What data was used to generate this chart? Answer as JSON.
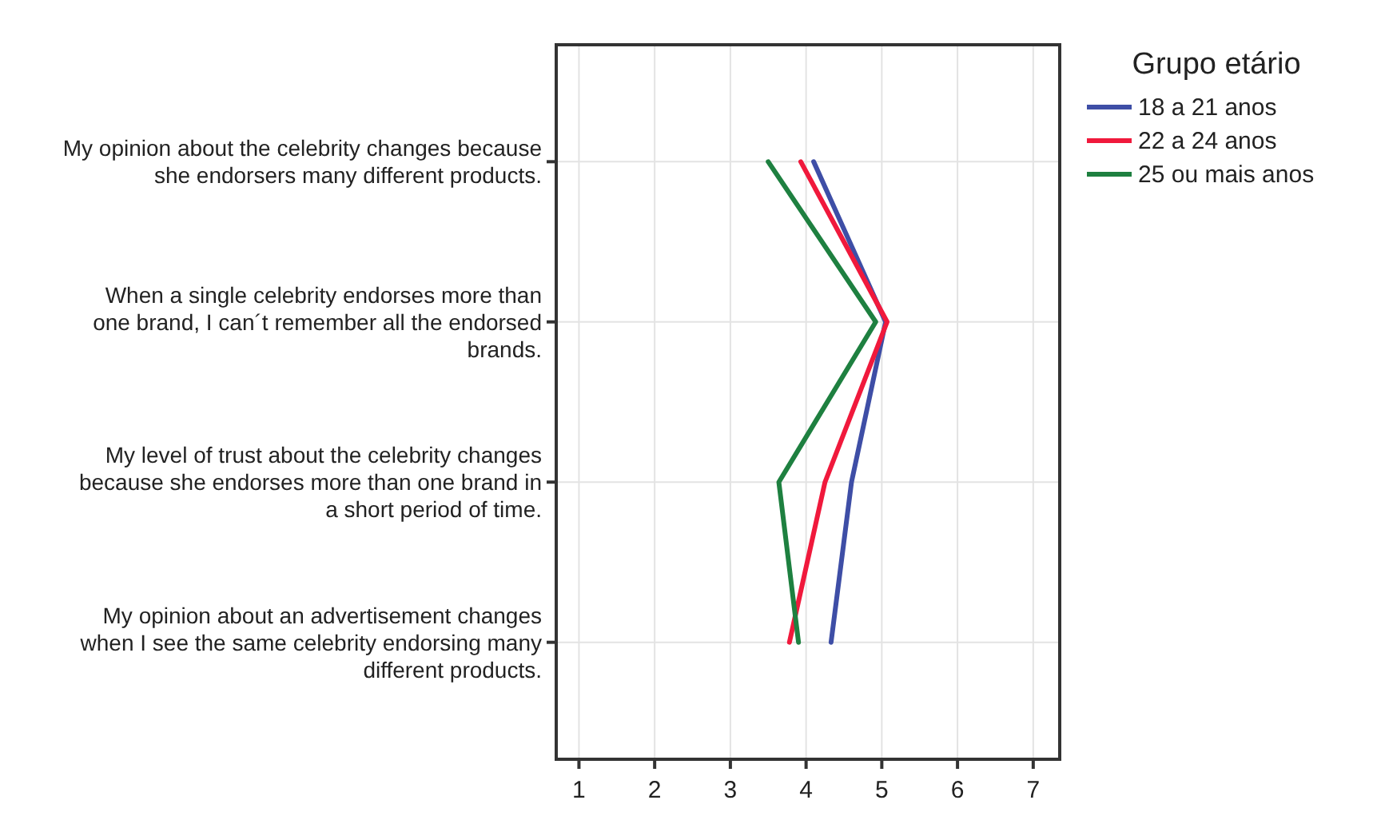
{
  "chart_data": {
    "type": "line",
    "orientation": "horizontal",
    "legend_title": "Grupo etário",
    "categories": [
      "My opinion about the celebrity changes because she endorsers many different products.",
      "When a single celebrity endorses more than one brand, I can´t remember all the endorsed brands.",
      "My level of trust about the celebrity changes because she endorses more than one brand in a short period of time.",
      "My opinion about an advertisement changes when I see the same celebrity endorsing many different products."
    ],
    "series": [
      {
        "name": "18 a 21 anos",
        "color": "#3e4ea6",
        "values": [
          4.1,
          5.05,
          4.6,
          4.33
        ]
      },
      {
        "name": "22 a 24 anos",
        "color": "#f0193c",
        "values": [
          3.93,
          5.07,
          4.25,
          3.78
        ]
      },
      {
        "name": "25 ou mais anos",
        "color": "#1e8040",
        "values": [
          3.5,
          4.92,
          3.64,
          3.9
        ]
      }
    ],
    "xlim": [
      0.7,
      7.35
    ],
    "xticks": [
      1,
      2,
      3,
      4,
      5,
      6,
      7
    ],
    "grid": true,
    "legend": "right"
  }
}
